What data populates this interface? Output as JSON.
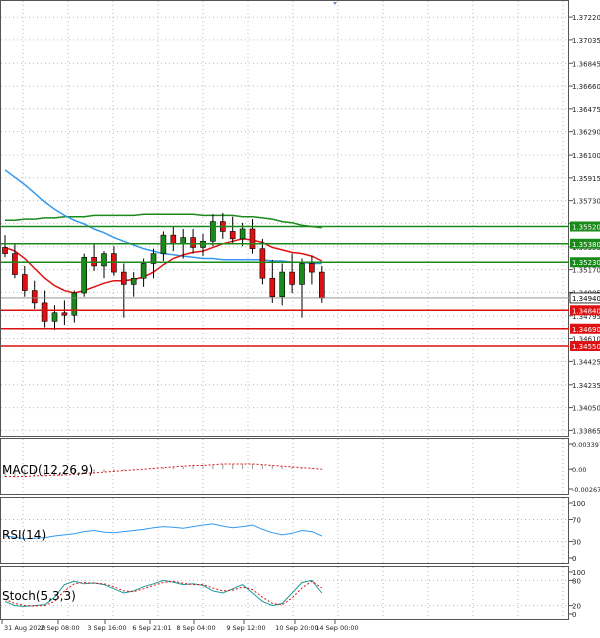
{
  "chart_data": {
    "type": "line",
    "main": {
      "y_ticks": [
        "1.37220",
        "1.37035",
        "1.36845",
        "1.36660",
        "1.36475",
        "1.36290",
        "1.36100",
        "1.35915",
        "1.35730",
        "1.35545",
        "1.35355",
        "1.35170",
        "1.34985",
        "1.34795",
        "1.34610",
        "1.34425",
        "1.34235",
        "1.34050",
        "1.33865"
      ],
      "ylim": [
        1.3386,
        1.3731
      ],
      "candles": [
        {
          "o": 1.3535,
          "h": 1.3545,
          "l": 1.3527,
          "c": 1.353
        },
        {
          "o": 1.353,
          "h": 1.3538,
          "l": 1.351,
          "c": 1.3513
        },
        {
          "o": 1.3513,
          "h": 1.352,
          "l": 1.3495,
          "c": 1.35
        },
        {
          "o": 1.35,
          "h": 1.3508,
          "l": 1.3485,
          "c": 1.349
        },
        {
          "o": 1.349,
          "h": 1.35,
          "l": 1.347,
          "c": 1.3475
        },
        {
          "o": 1.3475,
          "h": 1.3488,
          "l": 1.3468,
          "c": 1.3482
        },
        {
          "o": 1.3482,
          "h": 1.3492,
          "l": 1.3472,
          "c": 1.348
        },
        {
          "o": 1.348,
          "h": 1.35,
          "l": 1.3474,
          "c": 1.3498
        },
        {
          "o": 1.3498,
          "h": 1.353,
          "l": 1.3495,
          "c": 1.3527
        },
        {
          "o": 1.3527,
          "h": 1.3538,
          "l": 1.3516,
          "c": 1.352
        },
        {
          "o": 1.352,
          "h": 1.3532,
          "l": 1.351,
          "c": 1.353
        },
        {
          "o": 1.353,
          "h": 1.3536,
          "l": 1.3512,
          "c": 1.3515
        },
        {
          "o": 1.3515,
          "h": 1.3522,
          "l": 1.3478,
          "c": 1.3505
        },
        {
          "o": 1.3505,
          "h": 1.3515,
          "l": 1.3495,
          "c": 1.351
        },
        {
          "o": 1.351,
          "h": 1.3526,
          "l": 1.3503,
          "c": 1.3522
        },
        {
          "o": 1.3522,
          "h": 1.3534,
          "l": 1.351,
          "c": 1.353
        },
        {
          "o": 1.353,
          "h": 1.3548,
          "l": 1.3524,
          "c": 1.3545
        },
        {
          "o": 1.3545,
          "h": 1.3552,
          "l": 1.3532,
          "c": 1.3538
        },
        {
          "o": 1.3538,
          "h": 1.355,
          "l": 1.3526,
          "c": 1.3543
        },
        {
          "o": 1.3543,
          "h": 1.355,
          "l": 1.353,
          "c": 1.3535
        },
        {
          "o": 1.3535,
          "h": 1.3546,
          "l": 1.3528,
          "c": 1.354
        },
        {
          "o": 1.354,
          "h": 1.3562,
          "l": 1.3536,
          "c": 1.3556
        },
        {
          "o": 1.3556,
          "h": 1.3563,
          "l": 1.3542,
          "c": 1.3548
        },
        {
          "o": 1.3548,
          "h": 1.356,
          "l": 1.3538,
          "c": 1.3542
        },
        {
          "o": 1.3542,
          "h": 1.3555,
          "l": 1.3536,
          "c": 1.355
        },
        {
          "o": 1.355,
          "h": 1.3558,
          "l": 1.353,
          "c": 1.3534
        },
        {
          "o": 1.3534,
          "h": 1.3542,
          "l": 1.3505,
          "c": 1.351
        },
        {
          "o": 1.351,
          "h": 1.3525,
          "l": 1.349,
          "c": 1.3495
        },
        {
          "o": 1.3495,
          "h": 1.3522,
          "l": 1.3488,
          "c": 1.3515
        },
        {
          "o": 1.3515,
          "h": 1.353,
          "l": 1.3498,
          "c": 1.3505
        },
        {
          "o": 1.3505,
          "h": 1.3526,
          "l": 1.3478,
          "c": 1.3522
        },
        {
          "o": 1.3522,
          "h": 1.3528,
          "l": 1.3505,
          "c": 1.3515
        },
        {
          "o": 1.3515,
          "h": 1.352,
          "l": 1.349,
          "c": 1.3494
        }
      ],
      "sma_green": [
        1.3557,
        1.3557,
        1.3558,
        1.3558,
        1.3559,
        1.3559,
        1.356,
        1.356,
        1.356,
        1.3561,
        1.3561,
        1.3561,
        1.3561,
        1.3561,
        1.3562,
        1.3562,
        1.3562,
        1.3562,
        1.3562,
        1.3562,
        1.3561,
        1.3561,
        1.3561,
        1.3561,
        1.356,
        1.356,
        1.3559,
        1.3558,
        1.3556,
        1.3555,
        1.3553,
        1.3552,
        1.3551
      ],
      "sma_blue": [
        1.3598,
        1.3592,
        1.3586,
        1.3579,
        1.3572,
        1.3566,
        1.3561,
        1.3557,
        1.3554,
        1.355,
        1.3547,
        1.3543,
        1.354,
        1.3537,
        1.3534,
        1.3532,
        1.353,
        1.3529,
        1.3528,
        1.3527,
        1.3526,
        1.3526,
        1.3525,
        1.3525,
        1.3525,
        1.3525,
        1.3525,
        1.3524,
        1.3524,
        1.3523,
        1.3523,
        1.3522,
        1.3522
      ],
      "sma_red": [
        1.3535,
        1.3532,
        1.3526,
        1.3518,
        1.351,
        1.3504,
        1.35,
        1.3498,
        1.35,
        1.3503,
        1.3506,
        1.3508,
        1.3508,
        1.3509,
        1.3511,
        1.3515,
        1.3521,
        1.3526,
        1.3529,
        1.3531,
        1.3532,
        1.3535,
        1.3538,
        1.354,
        1.3542,
        1.3541,
        1.3539,
        1.3535,
        1.3533,
        1.3531,
        1.353,
        1.3528,
        1.3524
      ],
      "levels": [
        {
          "label": "1.35520",
          "value": 1.3552,
          "color": "#1a8a1a"
        },
        {
          "label": "1.35380",
          "value": 1.3538,
          "color": "#1a8a1a"
        },
        {
          "label": "1.35230",
          "value": 1.3523,
          "color": "#1a8a1a"
        },
        {
          "label": "1.34840",
          "value": 1.3484,
          "color": "#dd1111"
        },
        {
          "label": "1.34690",
          "value": 1.3469,
          "color": "#dd1111"
        },
        {
          "label": "1.34550",
          "value": 1.3455,
          "color": "#dd1111"
        }
      ],
      "current_price": {
        "label": "1.34940",
        "value": 1.3494
      }
    },
    "macd": {
      "title": "MACD(12,26,9)",
      "y_ticks": [
        "0.003397",
        "0.00",
        "-0.002678"
      ],
      "ylim": [
        -0.002678,
        0.003397
      ],
      "histogram": [
        -0.0011,
        -0.0011,
        -0.001,
        -0.001,
        -0.0009,
        -0.0009,
        -0.0008,
        -0.0007,
        -0.0006,
        -0.0005,
        -0.0004,
        -0.0003,
        -0.0002,
        -0.0001,
        0.0,
        0.0001,
        0.0002,
        0.0003,
        0.0004,
        0.0005,
        0.0006,
        0.0006,
        0.0007,
        0.0007,
        0.0007,
        0.0007,
        0.0006,
        0.0005,
        0.0004,
        0.0003,
        0.0002,
        0.0001,
        -0.0001
      ],
      "signal": [
        -0.001,
        -0.001,
        -0.001,
        -0.0009,
        -0.0009,
        -0.0008,
        -0.0008,
        -0.0007,
        -0.0006,
        -0.0005,
        -0.0004,
        -0.0003,
        -0.0002,
        -0.0001,
        0.0,
        0.0001,
        0.0002,
        0.0003,
        0.0004,
        0.0005,
        0.0005,
        0.0006,
        0.0007,
        0.0007,
        0.0007,
        0.0007,
        0.0006,
        0.0005,
        0.0004,
        0.0003,
        0.0002,
        0.0001,
        0.0
      ]
    },
    "rsi": {
      "title": "RSI(14)",
      "y_ticks": [
        "100",
        "70",
        "30",
        "0"
      ],
      "ylim": [
        0,
        100
      ],
      "values": [
        40,
        38,
        35,
        36,
        37,
        40,
        42,
        44,
        48,
        50,
        47,
        46,
        48,
        50,
        52,
        55,
        57,
        56,
        54,
        57,
        60,
        62,
        58,
        55,
        57,
        60,
        52,
        46,
        42,
        45,
        50,
        48,
        40
      ]
    },
    "stoch": {
      "title": "Stoch(5,3,3)",
      "y_ticks": [
        "100",
        "80",
        "20",
        "0"
      ],
      "ylim": [
        0,
        100
      ],
      "k": [
        30,
        20,
        18,
        20,
        22,
        40,
        70,
        78,
        72,
        74,
        70,
        60,
        50,
        55,
        65,
        72,
        80,
        76,
        70,
        72,
        68,
        55,
        50,
        60,
        70,
        50,
        30,
        20,
        25,
        50,
        75,
        80,
        50
      ],
      "d": [
        35,
        25,
        20,
        19,
        20,
        30,
        55,
        72,
        75,
        73,
        72,
        65,
        55,
        53,
        60,
        68,
        75,
        78,
        73,
        70,
        70,
        62,
        55,
        57,
        64,
        58,
        40,
        25,
        22,
        38,
        62,
        78,
        62
      ]
    },
    "x_ticks": [
      "31 Aug 2020",
      "2 Sep 08:00",
      "3 Sep 16:00",
      "6 Sep 21:01",
      "8 Sep 04:00",
      "9 Sep 12:00",
      "10 Sep 20:00",
      "14 Sep 00:00"
    ]
  }
}
